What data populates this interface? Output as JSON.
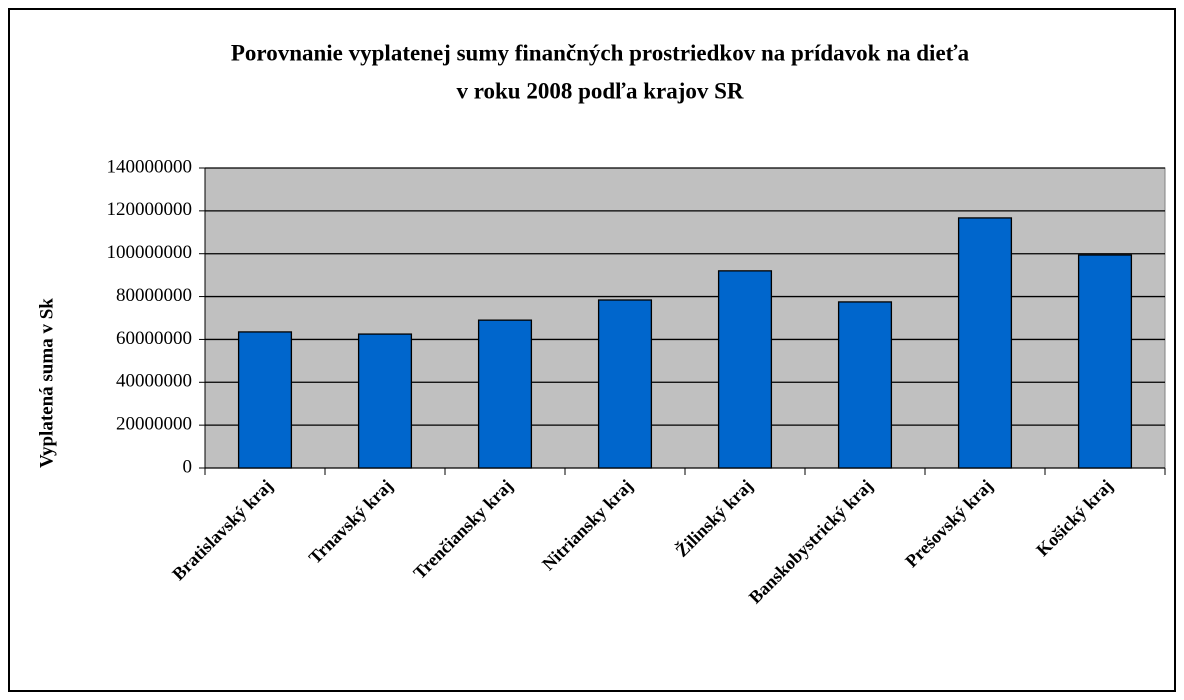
{
  "chart_data": {
    "type": "bar",
    "title": [
      "Porovnanie vyplatenej sumy finančných prostriedkov na prídavok na dieťa",
      "v roku 2008 podľa krajov SR"
    ],
    "ylabel": "Vyplatená suma v Sk",
    "categories": [
      "Bratislavský kraj",
      "Trnavský kraj",
      "Trenčiansky kraj",
      "Nitriansky kraj",
      "Žilinský kraj",
      "Banskobystrický kraj",
      "Prešovský kraj",
      "Košický kraj"
    ],
    "values": [
      63500000,
      62500000,
      69000000,
      78400000,
      92000000,
      77500000,
      116700000,
      99400000
    ],
    "color": "#0066cc",
    "ylim": [
      0,
      140000000
    ],
    "yticks": [
      0,
      20000000,
      40000000,
      60000000,
      80000000,
      100000000,
      120000000,
      140000000
    ],
    "grid": true
  }
}
